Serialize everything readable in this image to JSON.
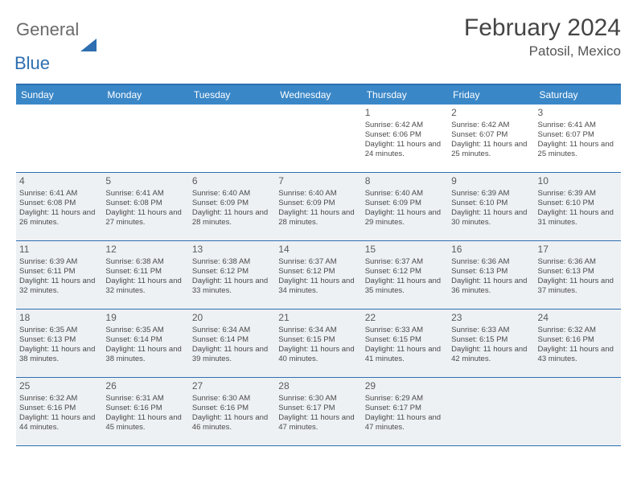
{
  "logo": {
    "general": "General",
    "blue": "Blue"
  },
  "title": "February 2024",
  "location": "Patosil, Mexico",
  "dayheads": [
    "Sunday",
    "Monday",
    "Tuesday",
    "Wednesday",
    "Thursday",
    "Friday",
    "Saturday"
  ],
  "colors": {
    "header_bg": "#3a87c7",
    "border": "#2d6fb0",
    "shaded": "#eef1f4",
    "text": "#4a4a4a"
  },
  "weeks": [
    [
      {
        "day": "",
        "lines": [],
        "shaded": false
      },
      {
        "day": "",
        "lines": [],
        "shaded": false
      },
      {
        "day": "",
        "lines": [],
        "shaded": false
      },
      {
        "day": "",
        "lines": [],
        "shaded": false
      },
      {
        "day": "1",
        "lines": [
          "Sunrise: 6:42 AM",
          "Sunset: 6:06 PM",
          "Daylight: 11 hours and 24 minutes."
        ],
        "shaded": false
      },
      {
        "day": "2",
        "lines": [
          "Sunrise: 6:42 AM",
          "Sunset: 6:07 PM",
          "Daylight: 11 hours and 25 minutes."
        ],
        "shaded": false
      },
      {
        "day": "3",
        "lines": [
          "Sunrise: 6:41 AM",
          "Sunset: 6:07 PM",
          "Daylight: 11 hours and 25 minutes."
        ],
        "shaded": false
      }
    ],
    [
      {
        "day": "4",
        "lines": [
          "Sunrise: 6:41 AM",
          "Sunset: 6:08 PM",
          "Daylight: 11 hours and 26 minutes."
        ],
        "shaded": true
      },
      {
        "day": "5",
        "lines": [
          "Sunrise: 6:41 AM",
          "Sunset: 6:08 PM",
          "Daylight: 11 hours and 27 minutes."
        ],
        "shaded": false
      },
      {
        "day": "6",
        "lines": [
          "Sunrise: 6:40 AM",
          "Sunset: 6:09 PM",
          "Daylight: 11 hours and 28 minutes."
        ],
        "shaded": false
      },
      {
        "day": "7",
        "lines": [
          "Sunrise: 6:40 AM",
          "Sunset: 6:09 PM",
          "Daylight: 11 hours and 28 minutes."
        ],
        "shaded": false
      },
      {
        "day": "8",
        "lines": [
          "Sunrise: 6:40 AM",
          "Sunset: 6:09 PM",
          "Daylight: 11 hours and 29 minutes."
        ],
        "shaded": false
      },
      {
        "day": "9",
        "lines": [
          "Sunrise: 6:39 AM",
          "Sunset: 6:10 PM",
          "Daylight: 11 hours and 30 minutes."
        ],
        "shaded": false
      },
      {
        "day": "10",
        "lines": [
          "Sunrise: 6:39 AM",
          "Sunset: 6:10 PM",
          "Daylight: 11 hours and 31 minutes."
        ],
        "shaded": false
      }
    ],
    [
      {
        "day": "11",
        "lines": [
          "Sunrise: 6:39 AM",
          "Sunset: 6:11 PM",
          "Daylight: 11 hours and 32 minutes."
        ],
        "shaded": true
      },
      {
        "day": "12",
        "lines": [
          "Sunrise: 6:38 AM",
          "Sunset: 6:11 PM",
          "Daylight: 11 hours and 32 minutes."
        ],
        "shaded": false
      },
      {
        "day": "13",
        "lines": [
          "Sunrise: 6:38 AM",
          "Sunset: 6:12 PM",
          "Daylight: 11 hours and 33 minutes."
        ],
        "shaded": false
      },
      {
        "day": "14",
        "lines": [
          "Sunrise: 6:37 AM",
          "Sunset: 6:12 PM",
          "Daylight: 11 hours and 34 minutes."
        ],
        "shaded": false
      },
      {
        "day": "15",
        "lines": [
          "Sunrise: 6:37 AM",
          "Sunset: 6:12 PM",
          "Daylight: 11 hours and 35 minutes."
        ],
        "shaded": false
      },
      {
        "day": "16",
        "lines": [
          "Sunrise: 6:36 AM",
          "Sunset: 6:13 PM",
          "Daylight: 11 hours and 36 minutes."
        ],
        "shaded": false
      },
      {
        "day": "17",
        "lines": [
          "Sunrise: 6:36 AM",
          "Sunset: 6:13 PM",
          "Daylight: 11 hours and 37 minutes."
        ],
        "shaded": false
      }
    ],
    [
      {
        "day": "18",
        "lines": [
          "Sunrise: 6:35 AM",
          "Sunset: 6:13 PM",
          "Daylight: 11 hours and 38 minutes."
        ],
        "shaded": true
      },
      {
        "day": "19",
        "lines": [
          "Sunrise: 6:35 AM",
          "Sunset: 6:14 PM",
          "Daylight: 11 hours and 38 minutes."
        ],
        "shaded": false
      },
      {
        "day": "20",
        "lines": [
          "Sunrise: 6:34 AM",
          "Sunset: 6:14 PM",
          "Daylight: 11 hours and 39 minutes."
        ],
        "shaded": false
      },
      {
        "day": "21",
        "lines": [
          "Sunrise: 6:34 AM",
          "Sunset: 6:15 PM",
          "Daylight: 11 hours and 40 minutes."
        ],
        "shaded": false
      },
      {
        "day": "22",
        "lines": [
          "Sunrise: 6:33 AM",
          "Sunset: 6:15 PM",
          "Daylight: 11 hours and 41 minutes."
        ],
        "shaded": false
      },
      {
        "day": "23",
        "lines": [
          "Sunrise: 6:33 AM",
          "Sunset: 6:15 PM",
          "Daylight: 11 hours and 42 minutes."
        ],
        "shaded": false
      },
      {
        "day": "24",
        "lines": [
          "Sunrise: 6:32 AM",
          "Sunset: 6:16 PM",
          "Daylight: 11 hours and 43 minutes."
        ],
        "shaded": false
      }
    ],
    [
      {
        "day": "25",
        "lines": [
          "Sunrise: 6:32 AM",
          "Sunset: 6:16 PM",
          "Daylight: 11 hours and 44 minutes."
        ],
        "shaded": true
      },
      {
        "day": "26",
        "lines": [
          "Sunrise: 6:31 AM",
          "Sunset: 6:16 PM",
          "Daylight: 11 hours and 45 minutes."
        ],
        "shaded": false
      },
      {
        "day": "27",
        "lines": [
          "Sunrise: 6:30 AM",
          "Sunset: 6:16 PM",
          "Daylight: 11 hours and 46 minutes."
        ],
        "shaded": false
      },
      {
        "day": "28",
        "lines": [
          "Sunrise: 6:30 AM",
          "Sunset: 6:17 PM",
          "Daylight: 11 hours and 47 minutes."
        ],
        "shaded": false
      },
      {
        "day": "29",
        "lines": [
          "Sunrise: 6:29 AM",
          "Sunset: 6:17 PM",
          "Daylight: 11 hours and 47 minutes."
        ],
        "shaded": false
      },
      {
        "day": "",
        "lines": [],
        "shaded": false
      },
      {
        "day": "",
        "lines": [],
        "shaded": false
      }
    ]
  ]
}
